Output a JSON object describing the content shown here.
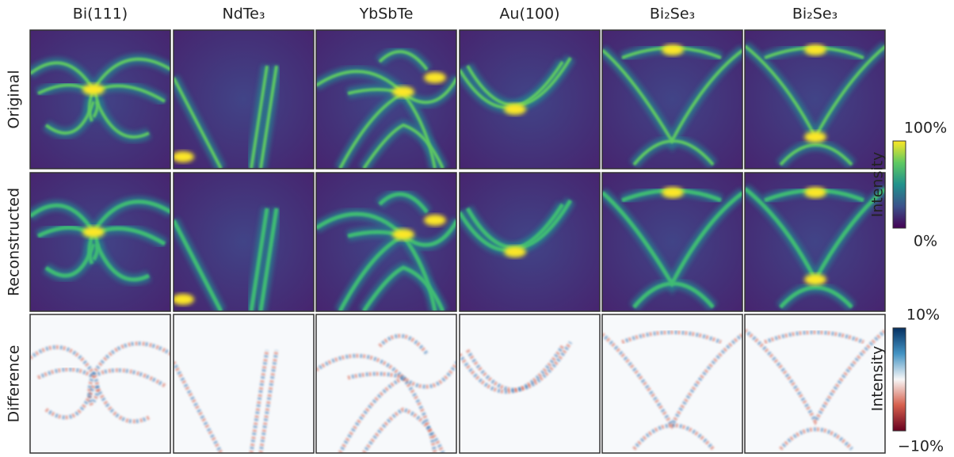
{
  "columns": [
    "Bi(111)",
    "NdTe₃",
    "YbSbTe",
    "Au(100)",
    "Bi₂Se₃",
    "Bi₂Se₃"
  ],
  "rows": [
    "Original",
    "Reconstructed",
    "Difference"
  ],
  "colorbars": [
    {
      "label": "Intensity",
      "max": "100%",
      "min": "0%"
    },
    {
      "label": "Intensity",
      "max": "10%",
      "min": "−10%"
    }
  ]
}
